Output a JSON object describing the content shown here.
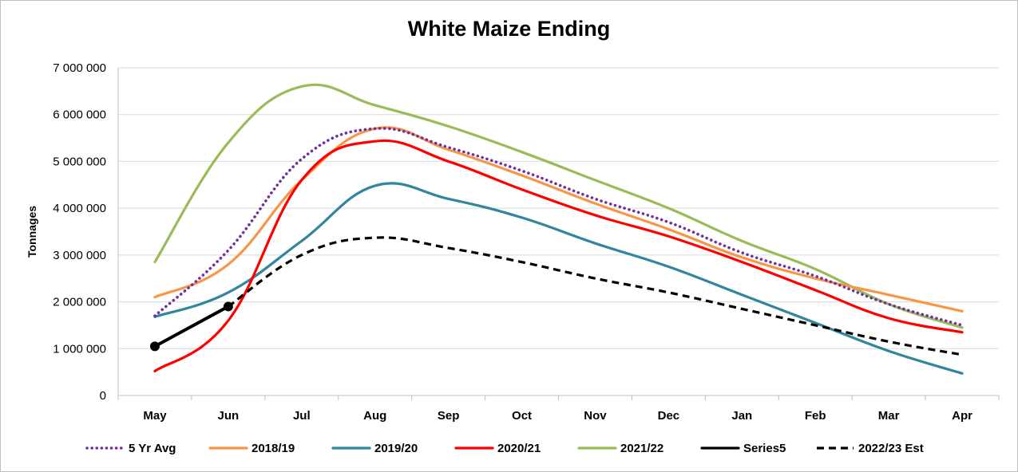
{
  "chart_data": {
    "type": "line",
    "title": "White Maize Ending",
    "xlabel": "",
    "ylabel": "Tonnages",
    "categories": [
      "May",
      "Jun",
      "Jul",
      "Aug",
      "Sep",
      "Oct",
      "Nov",
      "Dec",
      "Jan",
      "Feb",
      "Mar",
      "Apr"
    ],
    "ylim": [
      0,
      7000000
    ],
    "yticks": [
      0,
      1000000,
      2000000,
      3000000,
      4000000,
      5000000,
      6000000,
      7000000
    ],
    "ytick_labels": [
      "0",
      "1 000 000",
      "2 000 000",
      "3 000 000",
      "4 000 000",
      "5 000 000",
      "6 000 000",
      "7 000 000"
    ],
    "grid": true,
    "legend_position": "bottom",
    "series": [
      {
        "name": "5 Yr Avg",
        "color": "#7030a0",
        "dash": "dotted",
        "values": [
          1700000,
          3100000,
          5050000,
          5700000,
          5300000,
          4800000,
          4200000,
          3700000,
          3050000,
          2550000,
          1950000,
          1500000
        ]
      },
      {
        "name": "2018/19",
        "color": "#f79646",
        "dash": "solid",
        "values": [
          2100000,
          2800000,
          4600000,
          5700000,
          5250000,
          4700000,
          4100000,
          3550000,
          2950000,
          2500000,
          2150000,
          1800000
        ]
      },
      {
        "name": "2019/20",
        "color": "#31859c",
        "dash": "solid",
        "values": [
          1680000,
          2200000,
          3300000,
          4480000,
          4200000,
          3800000,
          3250000,
          2750000,
          2150000,
          1550000,
          950000,
          470000
        ]
      },
      {
        "name": "2020/21",
        "color": "#ff0000",
        "dash": "solid",
        "values": [
          520000,
          1600000,
          4600000,
          5430000,
          5000000,
          4400000,
          3850000,
          3400000,
          2850000,
          2250000,
          1650000,
          1350000
        ]
      },
      {
        "name": "2021/22",
        "color": "#9bbb59",
        "dash": "solid",
        "values": [
          2850000,
          5400000,
          6600000,
          6200000,
          5750000,
          5200000,
          4600000,
          4000000,
          3300000,
          2700000,
          1950000,
          1450000
        ]
      },
      {
        "name": "Series5",
        "color": "#000000",
        "dash": "solid",
        "markers": true,
        "values": [
          1050000,
          1900000,
          null,
          null,
          null,
          null,
          null,
          null,
          null,
          null,
          null,
          null
        ]
      },
      {
        "name": "2022/23 Est",
        "color": "#000000",
        "dash": "dashed",
        "values": [
          null,
          1900000,
          3000000,
          3370000,
          3150000,
          2850000,
          2500000,
          2200000,
          1850000,
          1500000,
          1150000,
          870000
        ]
      }
    ]
  }
}
